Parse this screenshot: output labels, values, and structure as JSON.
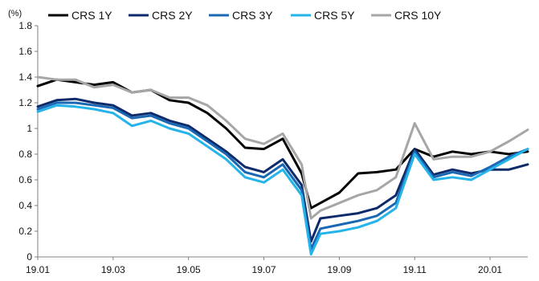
{
  "chart_data": {
    "type": "line",
    "unit_label": "(%)",
    "xlabel": "",
    "ylabel": "",
    "ylim": [
      0,
      1.8
    ],
    "yticks": [
      0,
      0.2,
      0.4,
      0.6,
      0.8,
      1,
      1.2,
      1.4,
      1.6,
      1.8
    ],
    "xlim": [
      0,
      13
    ],
    "xticks": [
      {
        "value": 0,
        "label": "19.01"
      },
      {
        "value": 2,
        "label": "19.03"
      },
      {
        "value": 4,
        "label": "19.05"
      },
      {
        "value": 6,
        "label": "19.07"
      },
      {
        "value": 8,
        "label": "19.09"
      },
      {
        "value": 10,
        "label": "19.11"
      },
      {
        "value": 12,
        "label": "20.01"
      }
    ],
    "grid": false,
    "legend_position": "top",
    "x": [
      0,
      0.5,
      1,
      1.5,
      2,
      2.5,
      3,
      3.5,
      4,
      4.5,
      5,
      5.5,
      6,
      6.5,
      7,
      7.25,
      7.5,
      8,
      8.5,
      9,
      9.5,
      10,
      10.5,
      11,
      11.5,
      12,
      12.5,
      13
    ],
    "series": [
      {
        "name": "CRS 1Y",
        "color": "#000000",
        "values": [
          1.33,
          1.38,
          1.36,
          1.34,
          1.36,
          1.28,
          1.3,
          1.22,
          1.2,
          1.12,
          1.0,
          0.85,
          0.84,
          0.92,
          0.65,
          0.38,
          0.42,
          0.5,
          0.65,
          0.66,
          0.68,
          0.84,
          0.78,
          0.82,
          0.8,
          0.82,
          0.8,
          0.82
        ]
      },
      {
        "name": "CRS 2Y",
        "color": "#0d2a6b",
        "values": [
          1.17,
          1.22,
          1.23,
          1.2,
          1.18,
          1.1,
          1.12,
          1.06,
          1.02,
          0.92,
          0.82,
          0.7,
          0.66,
          0.76,
          0.56,
          0.12,
          0.3,
          0.32,
          0.34,
          0.38,
          0.48,
          0.84,
          0.64,
          0.68,
          0.65,
          0.68,
          0.68,
          0.72
        ]
      },
      {
        "name": "CRS 3Y",
        "color": "#1a68b3",
        "values": [
          1.15,
          1.2,
          1.2,
          1.18,
          1.16,
          1.08,
          1.1,
          1.04,
          1.0,
          0.9,
          0.8,
          0.66,
          0.62,
          0.72,
          0.52,
          0.06,
          0.22,
          0.25,
          0.28,
          0.32,
          0.42,
          0.82,
          0.62,
          0.66,
          0.63,
          0.7,
          0.78,
          0.84
        ]
      },
      {
        "name": "CRS 5Y",
        "color": "#25b4ea",
        "values": [
          1.13,
          1.18,
          1.17,
          1.15,
          1.12,
          1.02,
          1.06,
          1.0,
          0.96,
          0.86,
          0.76,
          0.62,
          0.58,
          0.68,
          0.48,
          0.02,
          0.18,
          0.2,
          0.23,
          0.28,
          0.38,
          0.8,
          0.6,
          0.62,
          0.6,
          0.68,
          0.76,
          0.84
        ]
      },
      {
        "name": "CRS 10Y",
        "color": "#a6a6a6",
        "values": [
          1.4,
          1.38,
          1.38,
          1.32,
          1.34,
          1.28,
          1.3,
          1.24,
          1.24,
          1.18,
          1.06,
          0.92,
          0.88,
          0.96,
          0.72,
          0.3,
          0.36,
          0.42,
          0.48,
          0.52,
          0.62,
          1.04,
          0.76,
          0.78,
          0.78,
          0.82,
          0.9,
          0.99
        ]
      }
    ]
  }
}
